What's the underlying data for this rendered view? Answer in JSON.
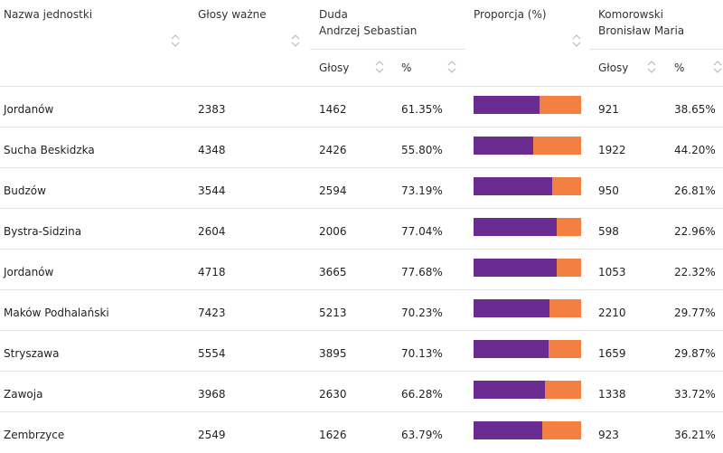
{
  "headers": {
    "unit": "Nazwa jednostki",
    "valid": "Głosy ważne",
    "duda": [
      "Duda",
      "Andrzej Sebastian"
    ],
    "proportion": "Proporcja (%)",
    "komorowski": [
      "Komorowski",
      "Bronisław Maria"
    ],
    "votes": "Głosy",
    "pct": "%"
  },
  "colors": {
    "duda": "#6a2c91",
    "komorowski": "#f47f43"
  },
  "rows": [
    {
      "name": "Jordanów",
      "valid": "2383",
      "duda_votes": "1462",
      "duda_pct": "61.35%",
      "duda_share": 61.35,
      "komo_votes": "921",
      "komo_pct": "38.65%"
    },
    {
      "name": "Sucha Beskidzka",
      "valid": "4348",
      "duda_votes": "2426",
      "duda_pct": "55.80%",
      "duda_share": 55.8,
      "komo_votes": "1922",
      "komo_pct": "44.20%"
    },
    {
      "name": "Budzów",
      "valid": "3544",
      "duda_votes": "2594",
      "duda_pct": "73.19%",
      "duda_share": 73.19,
      "komo_votes": "950",
      "komo_pct": "26.81%"
    },
    {
      "name": "Bystra-Sidzina",
      "valid": "2604",
      "duda_votes": "2006",
      "duda_pct": "77.04%",
      "duda_share": 77.04,
      "komo_votes": "598",
      "komo_pct": "22.96%"
    },
    {
      "name": "Jordanów",
      "valid": "4718",
      "duda_votes": "3665",
      "duda_pct": "77.68%",
      "duda_share": 77.68,
      "komo_votes": "1053",
      "komo_pct": "22.32%"
    },
    {
      "name": "Maków Podhalański",
      "valid": "7423",
      "duda_votes": "5213",
      "duda_pct": "70.23%",
      "duda_share": 70.23,
      "komo_votes": "2210",
      "komo_pct": "29.77%"
    },
    {
      "name": "Stryszawa",
      "valid": "5554",
      "duda_votes": "3895",
      "duda_pct": "70.13%",
      "duda_share": 70.13,
      "komo_votes": "1659",
      "komo_pct": "29.87%"
    },
    {
      "name": "Zawoja",
      "valid": "3968",
      "duda_votes": "2630",
      "duda_pct": "66.28%",
      "duda_share": 66.28,
      "komo_votes": "1338",
      "komo_pct": "33.72%"
    },
    {
      "name": "Zembrzyce",
      "valid": "2549",
      "duda_votes": "1626",
      "duda_pct": "63.79%",
      "duda_share": 63.79,
      "komo_votes": "923",
      "komo_pct": "36.21%"
    }
  ]
}
